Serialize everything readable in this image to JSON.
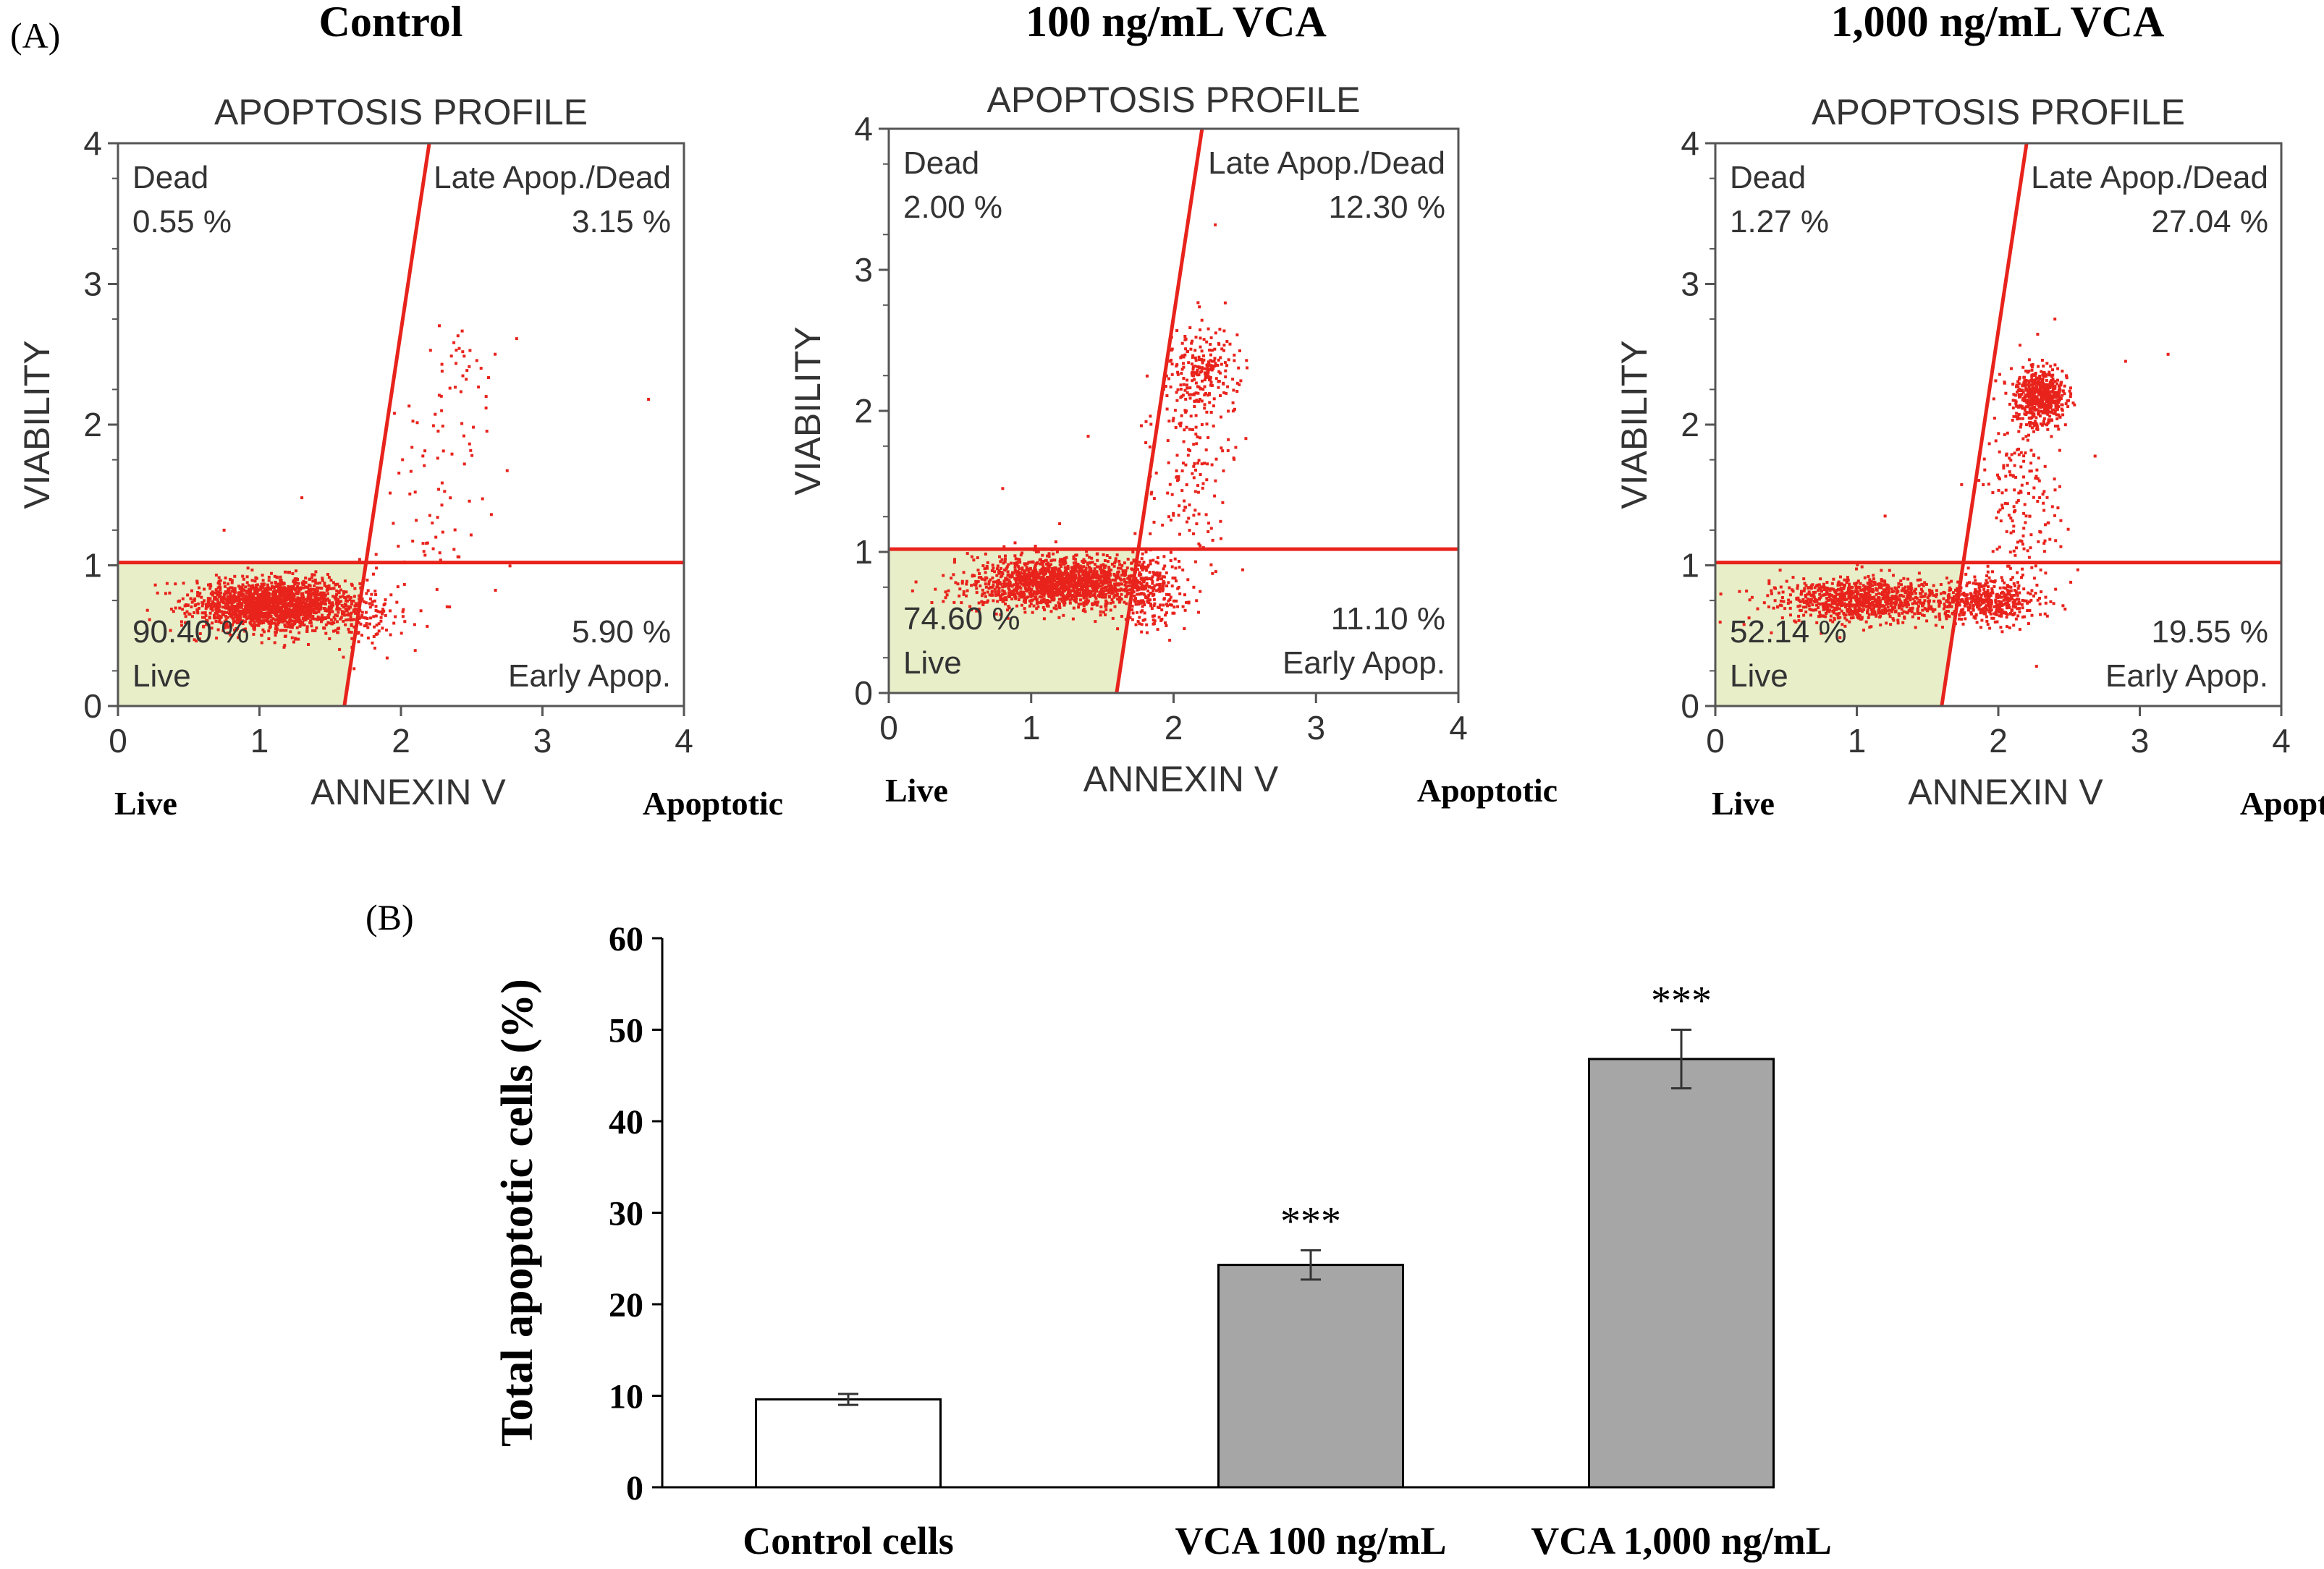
{
  "panel_labels": {
    "a": "(A)",
    "b": "(B)"
  },
  "chart_data": [
    {
      "type": "scatter",
      "group_title": "Control",
      "title": "APOPTOSIS PROFILE",
      "xlabel": "ANNEXIN V",
      "ylabel": "VIABILITY",
      "x_low_label": "Live",
      "x_high_label": "Apoptotic",
      "xlim": [
        0,
        4
      ],
      "ylim": [
        0,
        4
      ],
      "xticks": [
        "0",
        "1",
        "2",
        "3",
        "4"
      ],
      "yticks": [
        "0",
        "1",
        "2",
        "3",
        "4"
      ],
      "gate": {
        "h_y": 1.02,
        "v_bottom_x": 1.6,
        "v_top_x": 2.2
      },
      "quadrants": {
        "dead": {
          "name": "Dead",
          "value": "0.55 %"
        },
        "late": {
          "name": "Late Apop./Dead",
          "value": "3.15 %"
        },
        "live": {
          "name": "Live",
          "value": "90.40 %"
        },
        "early": {
          "name": "Early Apop.",
          "value": "5.90 %"
        }
      },
      "clusters": [
        {
          "cx": 1.1,
          "cy": 0.72,
          "sx": 0.28,
          "sy": 0.09,
          "n": 1800
        },
        {
          "cx": 1.75,
          "cy": 0.65,
          "sx": 0.14,
          "sy": 0.12,
          "n": 120
        },
        {
          "cx": 2.25,
          "cy": 1.5,
          "sx": 0.18,
          "sy": 0.45,
          "n": 70
        },
        {
          "cx": 2.45,
          "cy": 2.4,
          "sx": 0.12,
          "sy": 0.15,
          "n": 30
        }
      ],
      "outliers": [
        [
          3.75,
          2.18
        ],
        [
          1.3,
          1.48
        ],
        [
          0.75,
          1.25
        ]
      ]
    },
    {
      "type": "scatter",
      "group_title": "100 ng/mL VCA",
      "title": "APOPTOSIS PROFILE",
      "xlabel": "ANNEXIN V",
      "ylabel": "VIABILITY",
      "x_low_label": "Live",
      "x_high_label": "Apoptotic",
      "xlim": [
        0,
        4
      ],
      "ylim": [
        0,
        4
      ],
      "xticks": [
        "0",
        "1",
        "2",
        "3",
        "4"
      ],
      "yticks": [
        "0",
        "1",
        "2",
        "3",
        "4"
      ],
      "gate": {
        "h_y": 1.02,
        "v_bottom_x": 1.6,
        "v_top_x": 2.2
      },
      "quadrants": {
        "dead": {
          "name": "Dead",
          "value": "2.00 %"
        },
        "late": {
          "name": "Late Apop./Dead",
          "value": "12.30 %"
        },
        "live": {
          "name": "Live",
          "value": "74.60 %"
        },
        "early": {
          "name": "Early Apop.",
          "value": "11.10 %"
        }
      },
      "clusters": [
        {
          "cx": 1.2,
          "cy": 0.78,
          "sx": 0.3,
          "sy": 0.09,
          "n": 1500
        },
        {
          "cx": 1.8,
          "cy": 0.72,
          "sx": 0.14,
          "sy": 0.12,
          "n": 250
        },
        {
          "cx": 2.1,
          "cy": 1.65,
          "sx": 0.15,
          "sy": 0.4,
          "n": 160
        },
        {
          "cx": 2.2,
          "cy": 2.3,
          "sx": 0.12,
          "sy": 0.15,
          "n": 220
        }
      ],
      "outliers": [
        [
          1.4,
          1.82
        ],
        [
          0.8,
          1.45
        ],
        [
          1.2,
          1.2
        ]
      ]
    },
    {
      "type": "scatter",
      "group_title": "1,000 ng/mL VCA",
      "title": "APOPTOSIS PROFILE",
      "xlabel": "ANNEXIN V",
      "ylabel": "VIABILITY",
      "x_low_label": "Live",
      "x_high_label": "Apoptotic",
      "xlim": [
        0,
        4
      ],
      "ylim": [
        0,
        4
      ],
      "xticks": [
        "0",
        "1",
        "2",
        "3",
        "4"
      ],
      "yticks": [
        "0",
        "1",
        "2",
        "3",
        "4"
      ],
      "gate": {
        "h_y": 1.02,
        "v_bottom_x": 1.6,
        "v_top_x": 2.2
      },
      "quadrants": {
        "dead": {
          "name": "Dead",
          "value": "1.27 %"
        },
        "late": {
          "name": "Late Apop./Dead",
          "value": "27.04 %"
        },
        "live": {
          "name": "Live",
          "value": "52.14 %"
        },
        "early": {
          "name": "Early Apop.",
          "value": "19.55 %"
        }
      },
      "clusters": [
        {
          "cx": 1.05,
          "cy": 0.75,
          "sx": 0.3,
          "sy": 0.08,
          "n": 900
        },
        {
          "cx": 1.9,
          "cy": 0.75,
          "sx": 0.2,
          "sy": 0.08,
          "n": 450
        },
        {
          "cx": 2.15,
          "cy": 1.4,
          "sx": 0.15,
          "sy": 0.4,
          "n": 200
        },
        {
          "cx": 2.3,
          "cy": 2.2,
          "sx": 0.09,
          "sy": 0.1,
          "n": 550
        }
      ],
      "outliers": [
        [
          3.2,
          2.5
        ],
        [
          2.9,
          2.45
        ],
        [
          1.2,
          1.35
        ],
        [
          2.4,
          2.75
        ]
      ]
    },
    {
      "type": "bar",
      "ylabel": "Total apoptotic cells (%)",
      "ylim": [
        0,
        60
      ],
      "yticks": [
        "0",
        "10",
        "20",
        "30",
        "40",
        "50",
        "60"
      ],
      "categories": [
        "Control cells",
        "VCA 100 ng/mL",
        "VCA 1,000 ng/mL"
      ],
      "values": [
        9.6,
        24.3,
        46.8
      ],
      "errors": [
        0.6,
        1.6,
        3.2
      ],
      "colors": [
        "#ffffff",
        "#a6a6a6",
        "#a6a6a6"
      ],
      "annotations": [
        "",
        "***",
        "***"
      ]
    }
  ]
}
